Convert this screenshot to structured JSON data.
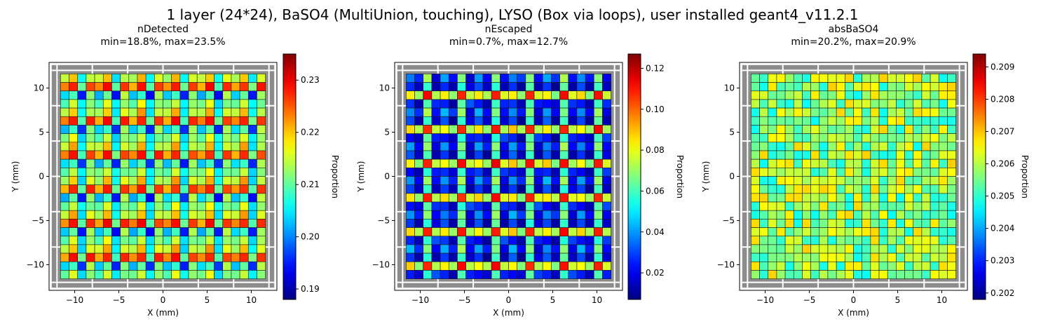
{
  "figure_title": "1 layer (24*24), BaSO4 (MultiUnion, touching), LYSO (Box via loops), user installed geant4_v11.2.1",
  "chart_data": [
    {
      "type": "heatmap",
      "title": "nDetected",
      "subtitle": "min=18.8%, max=23.5%",
      "xlabel": "X (mm)",
      "ylabel": "Y (mm)",
      "colorbar_label": "Proportion",
      "colormap": "jet",
      "grid": "24x24",
      "cell_pitch_mm": 1,
      "xlim": [
        -12.9,
        12.9
      ],
      "ylim": [
        -12.9,
        12.9
      ],
      "xticks": [
        -10,
        -5,
        0,
        5,
        10
      ],
      "yticks": [
        -10,
        -5,
        0,
        5,
        10
      ],
      "vmin": 0.188,
      "vmax": 0.235,
      "colorbar_ticks": [
        "0.19",
        "0.20",
        "0.21",
        "0.22",
        "0.23"
      ],
      "colorbar_tick_values": [
        0.19,
        0.2,
        0.21,
        0.22,
        0.23
      ],
      "pattern": "periodic_4x4",
      "tile": [
        [
          0.214,
          0.221,
          0.205,
          0.215
        ],
        [
          0.222,
          0.228,
          0.21,
          0.227
        ],
        [
          0.203,
          0.209,
          0.195,
          0.213
        ],
        [
          0.21,
          0.216,
          0.205,
          0.212
        ]
      ],
      "noise": 0.0015
    },
    {
      "type": "heatmap",
      "title": "nEscaped",
      "subtitle": "min=0.7%, max=12.7%",
      "xlabel": "X (mm)",
      "ylabel": "Y (mm)",
      "colorbar_label": "Proportion",
      "colormap": "jet",
      "grid": "24x24",
      "cell_pitch_mm": 1,
      "xlim": [
        -12.9,
        12.9
      ],
      "ylim": [
        -12.9,
        12.9
      ],
      "xticks": [
        -10,
        -5,
        0,
        5,
        10
      ],
      "yticks": [
        -10,
        -5,
        0,
        5,
        10
      ],
      "vmin": 0.007,
      "vmax": 0.127,
      "colorbar_ticks": [
        "0.02",
        "0.04",
        "0.06",
        "0.08",
        "0.10",
        "0.12"
      ],
      "colorbar_tick_values": [
        0.02,
        0.04,
        0.06,
        0.08,
        0.1,
        0.12
      ],
      "pattern": "periodic_4x4",
      "tile": [
        [
          0.04,
          0.025,
          0.07,
          0.02
        ],
        [
          0.03,
          0.012,
          0.06,
          0.015
        ],
        [
          0.085,
          0.07,
          0.11,
          0.075
        ],
        [
          0.025,
          0.014,
          0.06,
          0.028
        ]
      ],
      "noise": 0.004
    },
    {
      "type": "heatmap",
      "title": "absBaSO4",
      "subtitle": "min=20.2%, max=20.9%",
      "xlabel": "X (mm)",
      "ylabel": "Y (mm)",
      "colorbar_label": "Proportion",
      "colormap": "jet",
      "grid": "24x24",
      "cell_pitch_mm": 1,
      "xlim": [
        -12.9,
        12.9
      ],
      "ylim": [
        -12.9,
        12.9
      ],
      "xticks": [
        -10,
        -5,
        0,
        5,
        10
      ],
      "yticks": [
        -10,
        -5,
        0,
        5,
        10
      ],
      "vmin": 0.2018,
      "vmax": 0.2094,
      "colorbar_ticks": [
        "0.202",
        "0.203",
        "0.204",
        "0.205",
        "0.206",
        "0.207",
        "0.208",
        "0.209"
      ],
      "colorbar_tick_values": [
        0.202,
        0.203,
        0.204,
        0.205,
        0.206,
        0.207,
        0.208,
        0.209
      ],
      "pattern": "random_around_mean",
      "mean": 0.2058,
      "noise": 0.0011
    }
  ]
}
